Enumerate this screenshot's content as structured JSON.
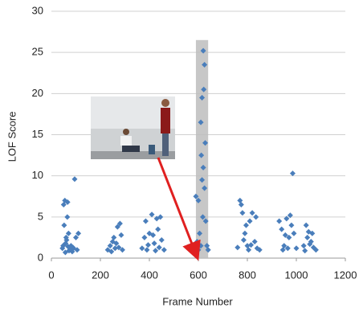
{
  "chart_data": {
    "type": "scatter",
    "xlabel": "Frame Number",
    "ylabel": "LOF Score",
    "xlim": [
      0,
      1200
    ],
    "xticks": [
      0,
      200,
      400,
      600,
      800,
      1000,
      1200
    ],
    "ylim": [
      0,
      30
    ],
    "yticks": [
      0,
      5,
      10,
      15,
      20,
      25,
      30
    ],
    "grid": true,
    "highlight_x": [
      590,
      640
    ],
    "highlight_y": [
      0,
      26.5
    ],
    "highlight_color": "#bdbdbd",
    "series": [
      {
        "color": "#4a7ebb",
        "x": [
          45,
          50,
          55,
          60,
          65,
          70,
          75,
          80,
          85,
          90,
          95,
          100,
          105,
          110,
          52,
          58,
          62,
          68,
          72,
          78,
          88,
          48,
          57,
          66,
          230,
          240,
          250,
          260,
          270,
          280,
          290,
          245,
          255,
          265,
          275,
          285,
          370,
          380,
          385,
          390,
          400,
          410,
          420,
          430,
          440,
          445,
          450,
          460,
          395,
          415,
          425,
          435,
          590,
          595,
          600,
          605,
          610,
          612,
          615,
          618,
          620,
          622,
          625,
          628,
          630,
          635,
          640,
          600,
          610,
          625,
          615,
          620,
          760,
          770,
          775,
          780,
          790,
          800,
          810,
          820,
          830,
          840,
          850,
          785,
          805,
          795,
          815,
          835,
          930,
          940,
          950,
          960,
          970,
          975,
          985,
          990,
          1000,
          945,
          955,
          965,
          980,
          1030,
          1040,
          1045,
          1050,
          1060,
          1070,
          1080,
          1035,
          1055,
          1065
        ],
        "values": [
          1.2,
          6.5,
          7,
          2.5,
          5,
          3,
          1,
          1.5,
          0.8,
          1.2,
          9.6,
          2.5,
          1.0,
          3,
          4,
          1.8,
          2.2,
          1.4,
          0.9,
          1.1,
          1.3,
          1.5,
          0.7,
          6.8,
          1.0,
          1.5,
          2,
          1.2,
          3.8,
          4.2,
          1.0,
          0.8,
          2.5,
          1.8,
          1.3,
          2.8,
          1.2,
          2.5,
          4.5,
          1.0,
          3,
          5.3,
          1.8,
          4.8,
          1.3,
          5.0,
          2.2,
          1.0,
          1.6,
          2.8,
          0.9,
          3.5,
          7.5,
          2,
          7,
          3,
          16.5,
          12.5,
          9.5,
          5,
          25.2,
          20.5,
          23.5,
          14,
          4.5,
          1.5,
          1.0,
          1.0,
          1.5,
          8.5,
          19.5,
          11,
          1.3,
          7,
          6.5,
          5.5,
          3,
          1.5,
          4.5,
          5.5,
          2,
          1.2,
          1.0,
          2.2,
          1.0,
          4,
          1.6,
          5.0,
          4.5,
          3.5,
          1.5,
          4.8,
          2.5,
          5.2,
          10.3,
          3,
          1.2,
          1.0,
          2.8,
          1.2,
          4.0,
          1.5,
          4,
          2.5,
          3.2,
          2,
          1.3,
          1.0,
          0.9,
          1.7,
          3.0
        ]
      }
    ]
  }
}
